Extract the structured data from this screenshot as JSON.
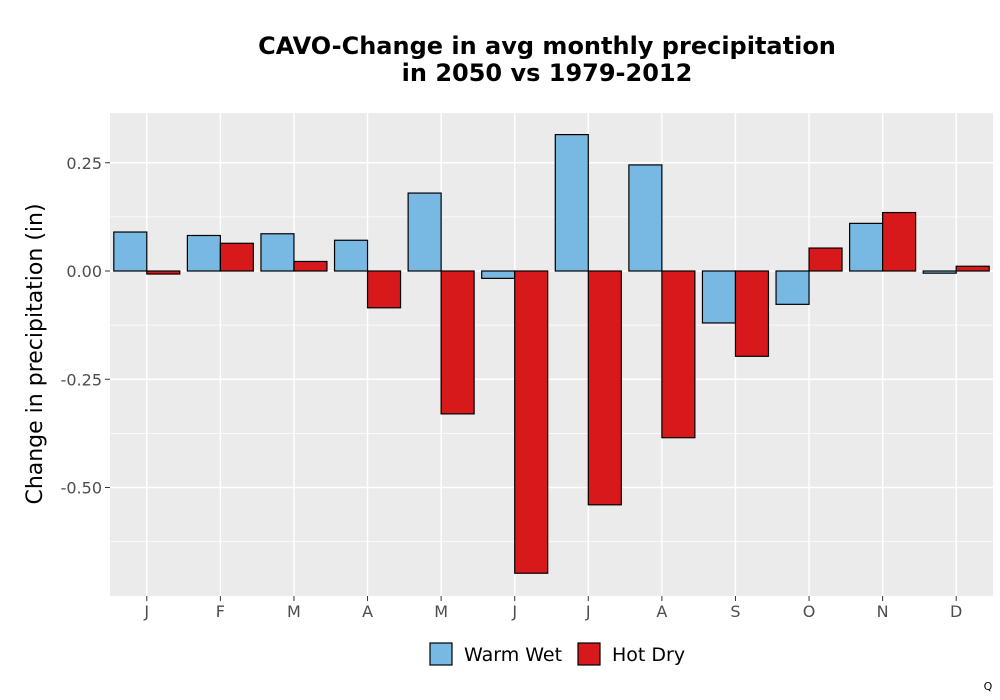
{
  "chart_data": {
    "type": "bar",
    "title": [
      "CAVO-Change in avg monthly precipitation",
      "in 2050 vs 1979-2012"
    ],
    "xlabel": "",
    "ylabel": "Change in precipitation (in)",
    "categories": [
      "J",
      "F",
      "M",
      "A",
      "M",
      "J",
      "J",
      "A",
      "S",
      "O",
      "N",
      "D"
    ],
    "series": [
      {
        "name": "Warm Wet",
        "color": "#77b9e3",
        "values": [
          0.09,
          0.082,
          0.086,
          0.071,
          0.18,
          -0.017,
          0.315,
          0.245,
          -0.12,
          -0.077,
          0.11,
          -0.005
        ]
      },
      {
        "name": "Hot Dry",
        "color": "#d7191c",
        "values": [
          -0.007,
          0.064,
          0.022,
          -0.085,
          -0.33,
          -0.698,
          -0.54,
          -0.385,
          -0.197,
          0.053,
          0.135,
          0.011
        ]
      }
    ],
    "ylim": [
      -0.75,
      0.365
    ],
    "yticks": [
      0.25,
      0.0,
      -0.25,
      -0.5
    ],
    "ytick_labels": [
      "0.25",
      "0.00",
      "-0.25",
      "-0.50"
    ],
    "grid": true,
    "legend_position": "bottom",
    "panel_background": "#ebebeb",
    "grid_color": "#ffffff",
    "bar_outline": "#000000"
  },
  "corner_mark": "Q"
}
